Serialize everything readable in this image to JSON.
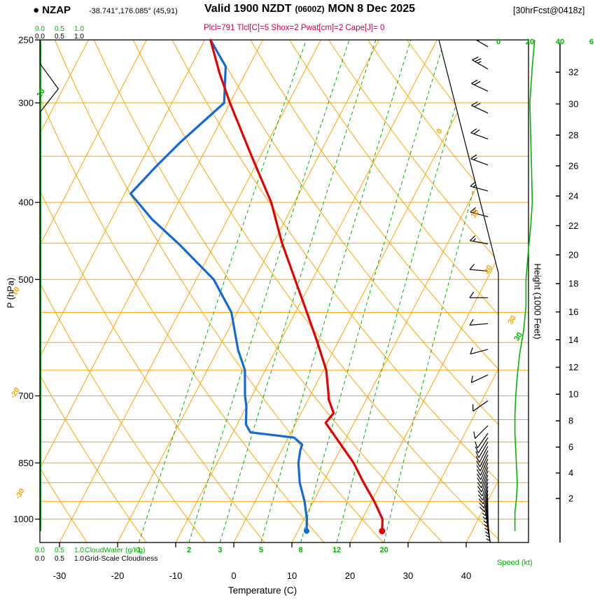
{
  "header": {
    "station": "● NZAP",
    "coords": "-38.741°,176.085° (45,91)",
    "valid_parts": [
      "Valid 1900 NZDT",
      "(0600Z)",
      "MON 8 Dec 2025"
    ],
    "forecast": "[30hrFcst@0418z]",
    "indices": "Plcl=791 Tlcl[C]=5 Shox=2 Pwat[cm]=2 Cape[J]= 0"
  },
  "axis_labels": {
    "pressure": "P (hPa)",
    "temperature": "Temperature (C)",
    "height": "Height (1000 Feet)",
    "speed": "Speed (kt)",
    "cloudwater": "CloudWater (g/Kg)",
    "cloudiness": "Grid-Scale Cloudiness"
  },
  "colors": {
    "grid_orange": "#FFA500",
    "green": "#00B400",
    "temperature_red": "#E60000",
    "dewpoint_blue": "#1569D3",
    "indices_red": "#CC0044",
    "black": "#000000"
  },
  "chart_data": {
    "type": "line",
    "subtype": "skew-t log-p atmospheric sounding",
    "pressure_axis": {
      "scale": "log",
      "unit": "hPa",
      "labeled_ticks": [
        250,
        300,
        400,
        500,
        700,
        850,
        1000
      ],
      "gridlines": {
        "from": 250,
        "to": 1000,
        "step": 50
      },
      "top": 250,
      "bottom": 1070
    },
    "temperature_axis": {
      "unit": "C",
      "ticks": [
        -30,
        -20,
        -10,
        0,
        10,
        20,
        30,
        40
      ],
      "skewed": true
    },
    "height_axis": {
      "unit": "1000 ft",
      "ticks": [
        2,
        4,
        6,
        8,
        10,
        12,
        14,
        16,
        18,
        20,
        22,
        24,
        26,
        28,
        30,
        32
      ]
    },
    "speed_axis": {
      "unit": "kt",
      "tick_labels": [
        "0",
        "20",
        "40",
        "6"
      ]
    },
    "isotherms_C": {
      "from": -110,
      "to": 40,
      "step": 10
    },
    "dry_adiabats_theta_C": {
      "from": -40,
      "to": 150,
      "step": 10
    },
    "mixing_ratio_lines_g_kg": [
      1,
      2,
      3,
      5,
      8,
      12,
      20
    ],
    "scale_values": [
      "0.0",
      "0.5",
      "1.0"
    ],
    "isotherm_labels_left": [
      {
        "text": "-10",
        "x": 20,
        "y": 426
      },
      {
        "text": "-20",
        "x": 20,
        "y": 570
      },
      {
        "text": "-30",
        "x": 27,
        "y": 714
      }
    ],
    "isotherm_labels_right": [
      {
        "text": "0",
        "x": 629,
        "y": 192
      },
      {
        "text": "10",
        "x": 678,
        "y": 312
      },
      {
        "text": "20",
        "x": 697,
        "y": 392
      },
      {
        "text": "30",
        "x": 731,
        "y": 464
      }
    ],
    "green_labels": [
      {
        "text": "10",
        "x": 58,
        "y": 140
      },
      {
        "text": "30",
        "x": 740,
        "y": 488
      }
    ],
    "series": {
      "temperature": [
        [
          250,
          -49
        ],
        [
          275,
          -44.5
        ],
        [
          300,
          -40
        ],
        [
          350,
          -31.5
        ],
        [
          400,
          -24
        ],
        [
          450,
          -18.5
        ],
        [
          500,
          -13
        ],
        [
          550,
          -8
        ],
        [
          600,
          -3.5
        ],
        [
          650,
          0.5
        ],
        [
          700,
          3.2
        ],
        [
          707,
          3.5
        ],
        [
          736,
          5.6
        ],
        [
          757,
          5.1
        ],
        [
          790,
          8.2
        ],
        [
          850,
          13.5
        ],
        [
          900,
          17
        ],
        [
          950,
          20.5
        ],
        [
          1000,
          23.5
        ],
        [
          1035,
          24.5
        ]
      ],
      "dewpoint": [
        [
          250,
          -49
        ],
        [
          270,
          -44
        ],
        [
          300,
          -41
        ],
        [
          336,
          -45
        ],
        [
          360,
          -47
        ],
        [
          390,
          -49
        ],
        [
          420,
          -43
        ],
        [
          452,
          -36
        ],
        [
          500,
          -27
        ],
        [
          550,
          -21
        ],
        [
          613,
          -16.5
        ],
        [
          650,
          -13.5
        ],
        [
          700,
          -11.2
        ],
        [
          722,
          -10
        ],
        [
          760,
          -8.5
        ],
        [
          778,
          -7
        ],
        [
          790,
          1
        ],
        [
          806,
          3
        ],
        [
          820,
          3.2
        ],
        [
          850,
          4
        ],
        [
          900,
          6
        ],
        [
          950,
          8.5
        ],
        [
          1000,
          10.5
        ],
        [
          1035,
          11.5
        ]
      ],
      "wind_speed_profile_kt": [
        [
          250,
          23
        ],
        [
          270,
          21.5
        ],
        [
          300,
          20
        ],
        [
          330,
          20.5
        ],
        [
          360,
          21
        ],
        [
          400,
          21.5
        ],
        [
          430,
          20.5
        ],
        [
          460,
          19
        ],
        [
          500,
          17.5
        ],
        [
          540,
          17.5
        ],
        [
          580,
          16
        ],
        [
          620,
          13.5
        ],
        [
          660,
          12
        ],
        [
          700,
          11
        ],
        [
          740,
          10.5
        ],
        [
          780,
          10.5
        ],
        [
          820,
          11
        ],
        [
          860,
          11.5
        ],
        [
          900,
          12
        ],
        [
          940,
          11.5
        ],
        [
          980,
          10.5
        ],
        [
          1035,
          10.5
        ]
      ],
      "wind_barbs": [
        [
          255,
          25,
          300
        ],
        [
          272,
          25,
          300
        ],
        [
          290,
          20,
          295
        ],
        [
          309,
          20,
          295
        ],
        [
          333,
          20,
          290
        ],
        [
          359,
          15,
          290
        ],
        [
          387,
          15,
          285
        ],
        [
          417,
          15,
          285
        ],
        [
          451,
          15,
          280
        ],
        [
          488,
          10,
          275
        ],
        [
          527,
          10,
          270
        ],
        [
          568,
          10,
          265
        ],
        [
          612,
          10,
          255
        ],
        [
          659,
          10,
          245
        ],
        [
          710,
          10,
          235
        ],
        [
          763,
          10,
          225
        ],
        [
          780,
          10,
          215
        ],
        [
          790,
          10,
          212
        ],
        [
          800,
          10,
          210
        ],
        [
          810,
          12,
          208
        ],
        [
          820,
          12,
          206
        ],
        [
          830,
          12,
          205
        ],
        [
          840,
          12,
          204
        ],
        [
          850,
          12,
          203
        ],
        [
          860,
          12,
          202
        ],
        [
          870,
          10,
          201
        ],
        [
          880,
          10,
          200
        ],
        [
          890,
          10,
          198
        ],
        [
          900,
          10,
          196
        ],
        [
          910,
          10,
          194
        ],
        [
          920,
          10,
          192
        ],
        [
          930,
          10,
          190
        ],
        [
          940,
          8,
          188
        ],
        [
          950,
          8,
          186
        ],
        [
          960,
          8,
          184
        ],
        [
          970,
          8,
          182
        ],
        [
          980,
          8,
          180
        ],
        [
          990,
          7,
          178
        ],
        [
          1000,
          7,
          176
        ],
        [
          1010,
          6,
          174
        ],
        [
          1020,
          5,
          172
        ],
        [
          1030,
          5,
          170
        ]
      ],
      "cloud_water_g_kg": [
        [
          250,
          0
        ],
        [
          1035,
          0
        ]
      ],
      "grid_scale_cloudiness": [
        [
          250,
          0
        ],
        [
          268,
          0
        ],
        [
          288,
          0.46
        ],
        [
          308,
          0
        ],
        [
          1035,
          0
        ]
      ]
    }
  }
}
